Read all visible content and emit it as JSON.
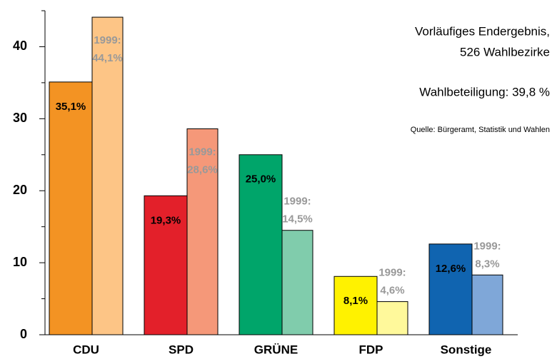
{
  "chart_data": {
    "type": "bar",
    "categories": [
      "CDU",
      "SPD",
      "GRÜNE",
      "FDP",
      "Sonstige"
    ],
    "series": [
      {
        "colors": [
          "#f39323",
          "#e3202a",
          "#00a56a",
          "#fff200",
          "#1064b0"
        ],
        "values": [
          35.1,
          19.3,
          25.0,
          8.1,
          12.6
        ],
        "value_labels": [
          "35,1%",
          "19,3%",
          "25,0%",
          "8,1%",
          "12,6%"
        ]
      },
      {
        "colors": [
          "#fdc586",
          "#f59879",
          "#80ccac",
          "#fff99b",
          "#7fa7d8"
        ],
        "values": [
          44.1,
          28.6,
          14.5,
          4.6,
          8.3
        ],
        "value_labels": [
          "1999:\n44,1%",
          "1999:\n28,6%",
          "1999:\n14,5%",
          "1999:\n4,6%",
          "1999:\n8,3%"
        ]
      }
    ],
    "ylim": [
      0,
      45
    ],
    "yticks": [
      0,
      10,
      20,
      30,
      40
    ],
    "yticks_minor": [
      5,
      15,
      25,
      35,
      45
    ],
    "notes": [
      "Vorläufiges Endergebnis,",
      "526 Wahlbezirke",
      "Wahlbeteiligung: 39,8 %",
      "Quelle: Bürgeramt, Statistik und Wahlen"
    ]
  }
}
